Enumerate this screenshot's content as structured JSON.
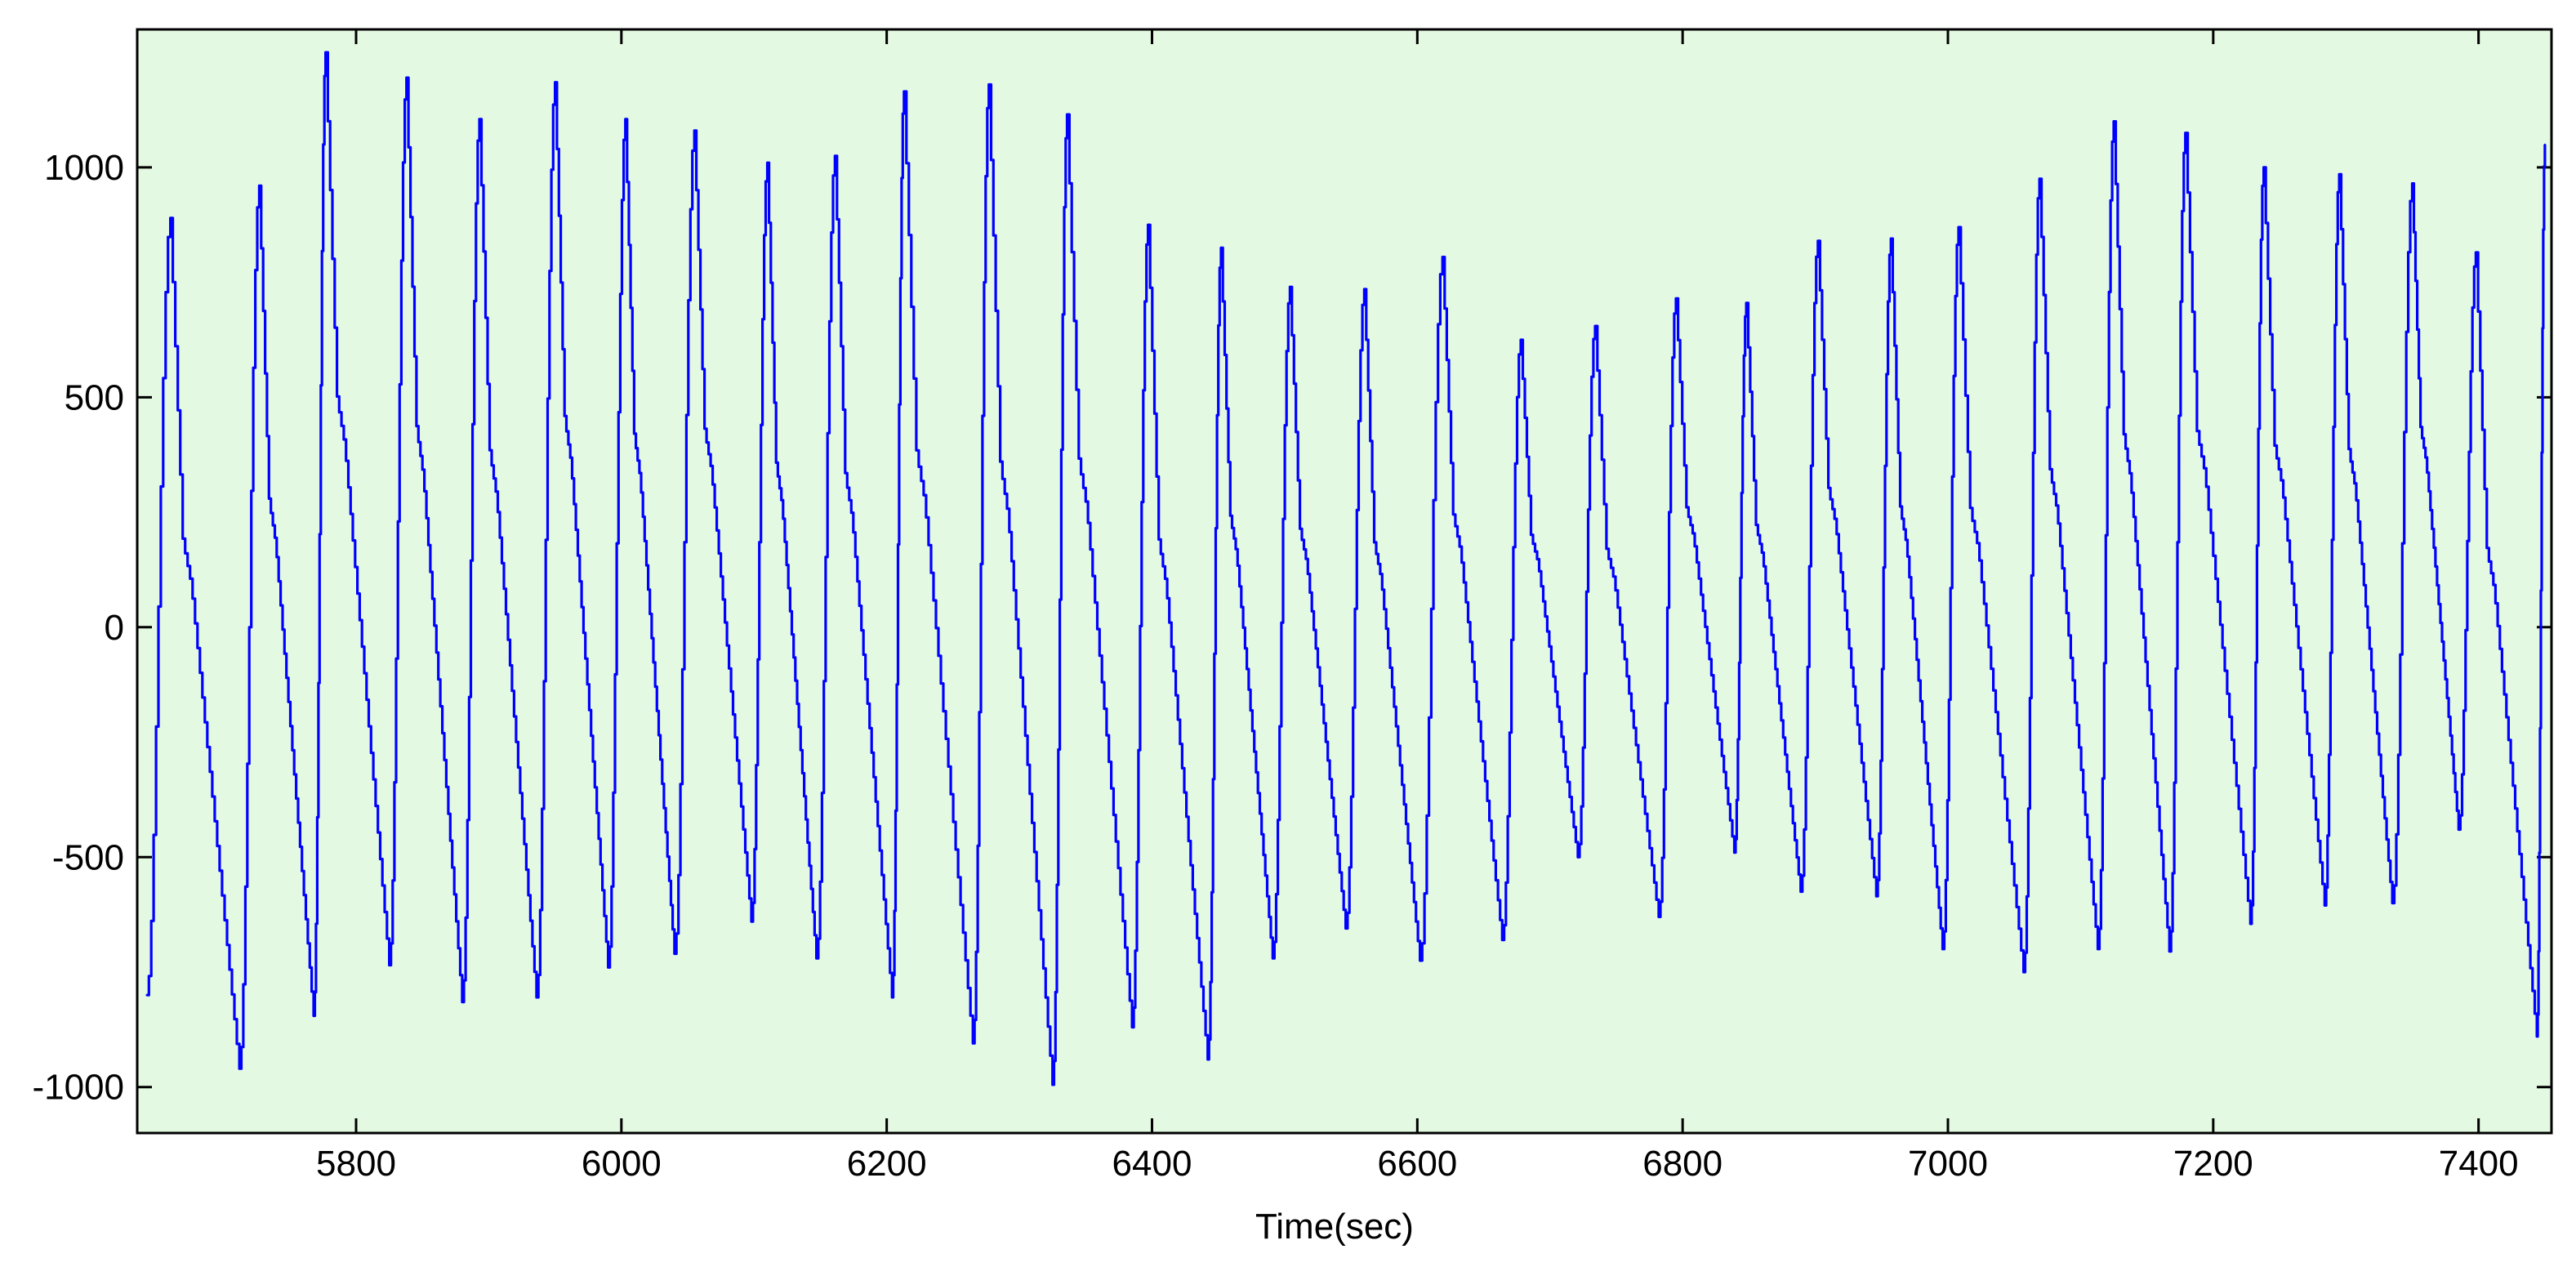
{
  "chart_data": {
    "type": "line",
    "title": "",
    "xlabel": "Time(sec)",
    "ylabel": "",
    "xlim": [
      5635,
      7455
    ],
    "ylim": [
      -1100,
      1300
    ],
    "xticks": [
      5800,
      6000,
      6200,
      6400,
      6600,
      6800,
      7000,
      7200,
      7400
    ],
    "yticks": [
      -1000,
      -500,
      0,
      500,
      1000
    ],
    "grid": false,
    "colors": {
      "line": "#0000ff",
      "plot_background": "#e4f9e1",
      "axes": "#000000"
    },
    "series": [
      {
        "cycle_data": [
          [
            5642,
            -800,
            5660,
            890,
            5712,
            -960
          ],
          [
            5727,
            960,
            5768,
            -845,
            5777,
            1250
          ],
          [
            5825,
            -735,
            5838,
            1195,
            5880,
            -815
          ],
          [
            5893,
            1105,
            5936,
            -805,
            5950,
            1185
          ],
          [
            5990,
            -740,
            6003,
            1105,
            6040,
            -710
          ],
          [
            6055,
            1080,
            6098,
            -640,
            6110,
            1010
          ],
          [
            6147,
            -720,
            6161,
            1025,
            6204,
            -805
          ],
          [
            6213,
            1165,
            6265,
            -905,
            6277,
            1180
          ],
          [
            6325,
            -995,
            6336,
            1115,
            6385,
            -870
          ],
          [
            6397,
            875,
            6442,
            -940,
            6452,
            825
          ],
          [
            6491,
            -720,
            6504,
            740,
            6546,
            -655
          ],
          [
            6560,
            735,
            6602,
            -725,
            6619,
            805
          ],
          [
            6664,
            -680,
            6678,
            625,
            6721,
            -500
          ],
          [
            6734,
            655,
            6782,
            -630,
            6795,
            715
          ],
          [
            6839,
            -490,
            6848,
            705,
            6889,
            -575
          ],
          [
            6902,
            840,
            6946,
            -585,
            6957,
            845
          ],
          [
            6996,
            -700,
            7008,
            870,
            7057,
            -750
          ],
          [
            7069,
            975,
            7113,
            -700,
            7125,
            1100
          ],
          [
            7167,
            -705,
            7179,
            1075,
            7228,
            -645
          ],
          [
            7238,
            1000,
            7284,
            -605,
            7295,
            985
          ],
          [
            7335,
            -600,
            7350,
            965,
            7385,
            -440
          ],
          [
            7398,
            815,
            7444,
            -890,
            7450,
            1050
          ]
        ]
      }
    ]
  }
}
